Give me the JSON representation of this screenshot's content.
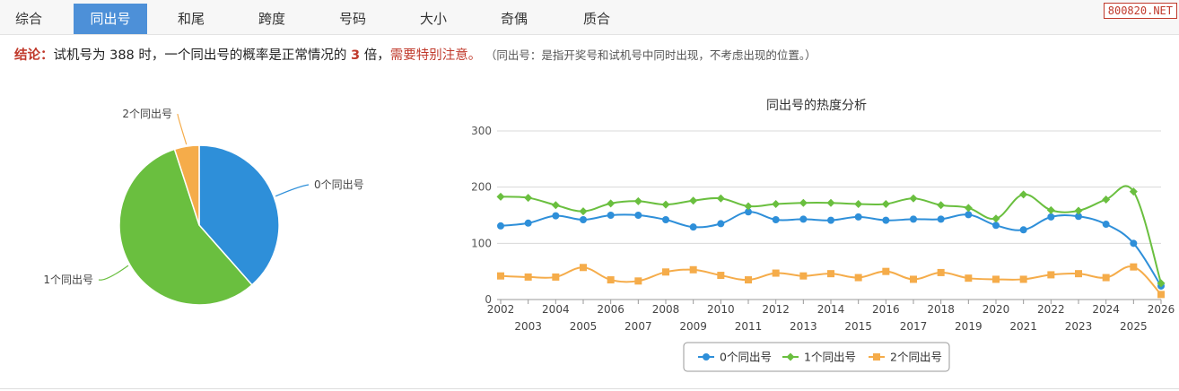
{
  "tabs": [
    {
      "label": "综合",
      "active": false
    },
    {
      "label": "同出号",
      "active": true
    },
    {
      "label": "和尾",
      "active": false
    },
    {
      "label": "跨度",
      "active": false
    },
    {
      "label": "号码",
      "active": false
    },
    {
      "label": "大小",
      "active": false
    },
    {
      "label": "奇偶",
      "active": false
    },
    {
      "label": "质合",
      "active": false
    }
  ],
  "site_badge": "800820.NET",
  "conclusion": {
    "label": "结论：",
    "text_before": "试机号为 388 时，一个同出号的概率是正常情况的",
    "multiple": "3",
    "text_after": "倍，",
    "warning": "需要特别注意。",
    "note": "（同出号：是指开奖号和试机号中同时出现，不考虑出现的位置。）"
  },
  "chart_data": [
    {
      "type": "pie",
      "categories": [
        "0个同出号",
        "1个同出号",
        "2个同出号"
      ],
      "values": [
        38.5,
        56.5,
        5.0
      ],
      "colors": [
        "#2e8fd9",
        "#6abf3f",
        "#f5ac4a"
      ]
    },
    {
      "type": "line",
      "title": "同出号的热度分析",
      "x": [
        2002,
        2003,
        2004,
        2005,
        2006,
        2007,
        2008,
        2009,
        2010,
        2011,
        2012,
        2013,
        2014,
        2015,
        2016,
        2017,
        2018,
        2019,
        2020,
        2021,
        2022,
        2023,
        2024,
        2025,
        2026
      ],
      "ylim": [
        0,
        300
      ],
      "yticks": [
        0,
        100,
        200,
        300
      ],
      "grid": true,
      "legend": "bottom",
      "series": [
        {
          "name": "0个同出号",
          "color": "#2e8fd9",
          "marker": "circle",
          "values": [
            131,
            136,
            149,
            142,
            150,
            150,
            142,
            129,
            135,
            156,
            142,
            143,
            141,
            147,
            141,
            143,
            143,
            151,
            132,
            124,
            147,
            148,
            134,
            100,
            24
          ]
        },
        {
          "name": "1个同出号",
          "color": "#6abf3f",
          "marker": "diamond",
          "values": [
            183,
            181,
            168,
            157,
            171,
            175,
            169,
            176,
            180,
            166,
            170,
            172,
            172,
            170,
            170,
            180,
            168,
            163,
            144,
            187,
            159,
            158,
            178,
            192,
            29
          ]
        },
        {
          "name": "2个同出号",
          "color": "#f5ac4a",
          "marker": "square",
          "values": [
            42,
            40,
            40,
            57,
            35,
            33,
            49,
            53,
            43,
            35,
            47,
            42,
            46,
            39,
            50,
            36,
            48,
            38,
            36,
            36,
            44,
            46,
            39,
            58,
            9
          ]
        }
      ]
    }
  ]
}
